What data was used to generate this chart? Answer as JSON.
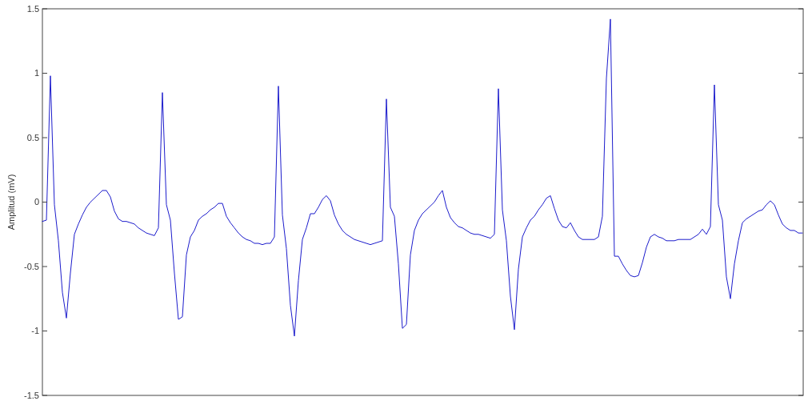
{
  "chart_data": {
    "type": "line",
    "ylabel": "Amplitud (mV)",
    "categories": [
      null,
      null,
      null,
      null,
      null,
      null,
      null,
      null,
      null,
      null,
      null,
      null,
      null,
      null,
      null,
      null,
      null,
      null,
      null,
      null,
      null,
      null,
      null,
      null,
      null,
      null,
      null,
      null,
      null,
      null,
      null,
      null,
      null,
      null,
      null,
      null,
      null,
      null,
      null,
      null,
      null,
      null,
      null,
      null,
      null,
      null,
      null,
      null,
      null,
      null,
      null,
      null,
      null,
      null,
      null,
      null,
      null,
      null,
      null,
      null,
      null,
      null,
      null,
      null,
      null,
      null,
      null,
      null,
      null,
      null,
      null,
      null,
      null,
      null,
      null,
      null,
      null,
      null,
      null,
      null,
      null,
      null,
      null,
      null,
      null,
      null,
      null,
      null,
      null,
      null,
      null,
      null,
      null,
      null,
      null,
      null,
      null,
      null,
      null,
      null,
      null,
      null,
      null,
      null,
      null,
      null,
      null,
      null,
      null,
      null,
      null,
      null,
      null,
      null,
      null,
      null,
      null,
      null,
      null,
      null,
      null,
      null,
      null,
      null,
      null,
      null,
      null,
      null,
      null,
      null,
      null,
      null,
      null,
      null,
      null,
      null,
      null,
      null,
      null,
      null,
      null,
      null,
      null,
      null,
      null,
      null,
      null,
      null,
      null,
      null,
      null,
      null,
      null,
      null,
      null,
      null,
      null,
      null,
      null,
      null,
      null,
      null,
      null,
      null,
      null,
      null,
      null,
      null,
      null,
      null,
      null,
      null,
      null,
      null,
      null,
      null,
      null,
      null,
      null,
      null,
      null,
      null,
      null,
      null,
      null,
      null,
      null,
      null,
      null,
      null,
      null
    ],
    "series": [
      {
        "color": "#1c1ccc",
        "values": [
          -0.15,
          -0.14,
          0.98,
          -0.02,
          -0.3,
          -0.7,
          -0.9,
          -0.55,
          -0.25,
          -0.17,
          -0.1,
          -0.04,
          0.0,
          0.03,
          0.06,
          0.09,
          0.09,
          0.04,
          -0.07,
          -0.13,
          -0.15,
          -0.15,
          -0.16,
          -0.17,
          -0.2,
          -0.22,
          -0.24,
          -0.25,
          -0.26,
          -0.2,
          0.85,
          -0.02,
          -0.14,
          -0.55,
          -0.91,
          -0.89,
          -0.41,
          -0.27,
          -0.22,
          -0.14,
          -0.11,
          -0.09,
          -0.06,
          -0.04,
          -0.01,
          -0.01,
          -0.11,
          -0.16,
          -0.2,
          -0.24,
          -0.27,
          -0.29,
          -0.3,
          -0.32,
          -0.32,
          -0.33,
          -0.32,
          -0.32,
          -0.27,
          0.9,
          -0.1,
          -0.36,
          -0.8,
          -1.04,
          -0.61,
          -0.29,
          -0.2,
          -0.09,
          -0.09,
          -0.04,
          0.02,
          0.05,
          0.01,
          -0.1,
          -0.17,
          -0.22,
          -0.25,
          -0.27,
          -0.29,
          -0.3,
          -0.31,
          -0.32,
          -0.33,
          -0.32,
          -0.31,
          -0.3,
          0.8,
          -0.04,
          -0.11,
          -0.48,
          -0.98,
          -0.95,
          -0.41,
          -0.22,
          -0.14,
          -0.09,
          -0.06,
          -0.03,
          0.0,
          0.05,
          0.09,
          -0.04,
          -0.12,
          -0.16,
          -0.19,
          -0.2,
          -0.22,
          -0.24,
          -0.25,
          -0.25,
          -0.26,
          -0.27,
          -0.28,
          -0.25,
          0.88,
          -0.06,
          -0.3,
          -0.73,
          -0.99,
          -0.52,
          -0.27,
          -0.2,
          -0.14,
          -0.11,
          -0.06,
          -0.02,
          0.03,
          0.05,
          -0.05,
          -0.14,
          -0.19,
          -0.2,
          -0.16,
          -0.22,
          -0.27,
          -0.29,
          -0.29,
          -0.29,
          -0.29,
          -0.27,
          -0.11,
          0.96,
          1.42,
          -0.42,
          -0.42,
          -0.48,
          -0.53,
          -0.57,
          -0.58,
          -0.57,
          -0.47,
          -0.35,
          -0.27,
          -0.25,
          -0.27,
          -0.28,
          -0.3,
          -0.3,
          -0.3,
          -0.29,
          -0.29,
          -0.29,
          -0.29,
          -0.27,
          -0.25,
          -0.21,
          -0.25,
          -0.19,
          0.91,
          -0.02,
          -0.14,
          -0.58,
          -0.75,
          -0.48,
          -0.3,
          -0.16,
          -0.13,
          -0.11,
          -0.09,
          -0.07,
          -0.06,
          -0.02,
          0.01,
          -0.02,
          -0.1,
          -0.17,
          -0.2,
          -0.22,
          -0.22,
          -0.24,
          -0.24
        ]
      }
    ],
    "ylim": [
      -1.5,
      1.5
    ],
    "yticks": [
      -1.5,
      -1,
      -0.5,
      0,
      0.5,
      1,
      1.5
    ],
    "tick_labels": "y"
  }
}
